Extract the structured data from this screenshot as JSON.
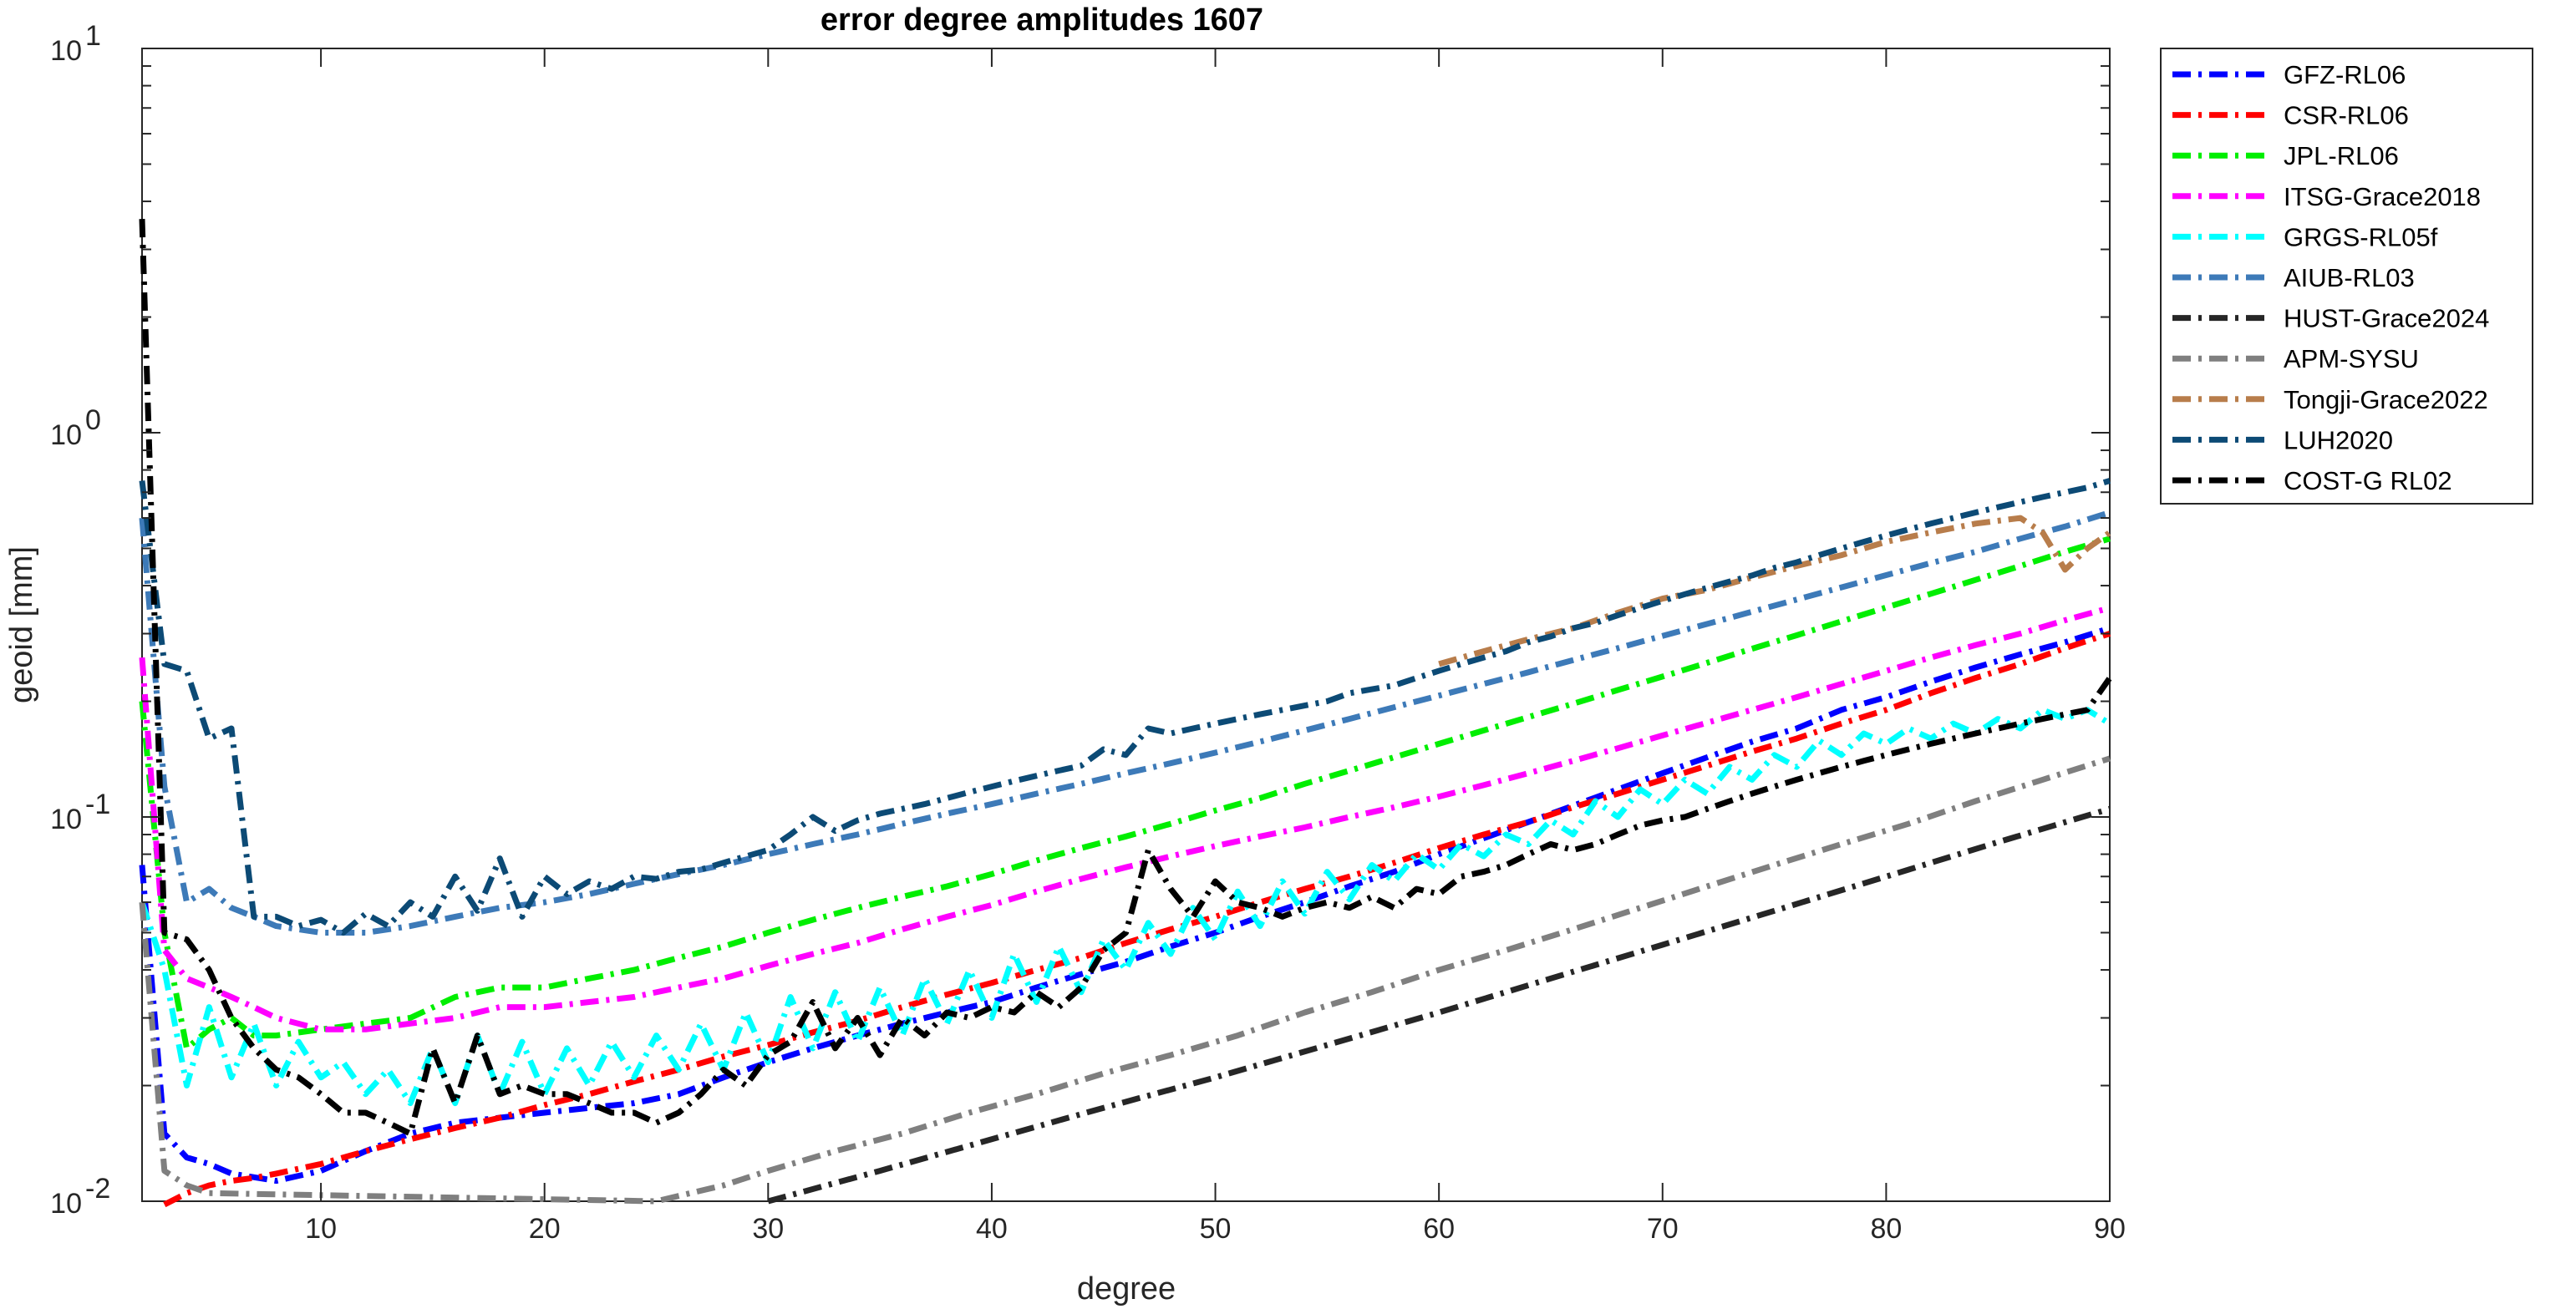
{
  "chart_data": {
    "type": "line",
    "title": "error degree amplitudes 1607",
    "xlabel": "degree",
    "ylabel": "geoid [mm]",
    "yscale": "log",
    "xlim": [
      2,
      90
    ],
    "ylim": [
      0.01,
      10
    ],
    "x_ticks": [
      10,
      20,
      30,
      40,
      50,
      60,
      70,
      80,
      90
    ],
    "y_ticks": [
      {
        "value": 0.01,
        "base": "10",
        "exp": "-2"
      },
      {
        "value": 0.1,
        "base": "10",
        "exp": "-1"
      },
      {
        "value": 1,
        "base": "10",
        "exp": "0"
      },
      {
        "value": 10,
        "base": "10",
        "exp": "1"
      }
    ],
    "grid": false,
    "legend_position": "outside-top-right",
    "series": [
      {
        "name": "GFZ-RL06",
        "color": "#0000ff",
        "x": [
          2,
          3,
          4,
          5,
          6,
          8,
          10,
          12,
          14,
          16,
          18,
          20,
          22,
          24,
          26,
          28,
          30,
          32,
          34,
          36,
          38,
          40,
          42,
          44,
          46,
          48,
          50,
          52,
          54,
          56,
          58,
          60,
          62,
          64,
          66,
          68,
          70,
          72,
          74,
          76,
          78,
          80,
          82,
          84,
          86,
          88,
          90
        ],
        "values": [
          0.075,
          0.015,
          0.013,
          0.0125,
          0.0118,
          0.0113,
          0.012,
          0.0135,
          0.015,
          0.016,
          0.0165,
          0.017,
          0.0175,
          0.018,
          0.019,
          0.021,
          0.023,
          0.025,
          0.027,
          0.029,
          0.031,
          0.033,
          0.036,
          0.039,
          0.042,
          0.046,
          0.05,
          0.055,
          0.06,
          0.066,
          0.072,
          0.08,
          0.088,
          0.097,
          0.107,
          0.118,
          0.13,
          0.143,
          0.157,
          0.17,
          0.19,
          0.205,
          0.225,
          0.245,
          0.265,
          0.285,
          0.31
        ]
      },
      {
        "name": "CSR-RL06",
        "color": "#ff0000",
        "x": [
          3,
          4,
          5,
          6,
          7,
          8,
          10,
          12,
          14,
          16,
          18,
          20,
          22,
          24,
          26,
          28,
          30,
          32,
          34,
          36,
          38,
          40,
          42,
          44,
          46,
          48,
          50,
          52,
          54,
          56,
          58,
          60,
          62,
          64,
          66,
          68,
          70,
          72,
          74,
          76,
          78,
          80,
          82,
          84,
          86,
          88,
          90
        ],
        "values": [
          0.0095,
          0.0105,
          0.011,
          0.0113,
          0.0115,
          0.0118,
          0.0125,
          0.0135,
          0.0145,
          0.0155,
          0.0165,
          0.0178,
          0.019,
          0.0205,
          0.022,
          0.0238,
          0.0255,
          0.0275,
          0.0295,
          0.032,
          0.0345,
          0.037,
          0.04,
          0.043,
          0.047,
          0.051,
          0.055,
          0.06,
          0.065,
          0.07,
          0.076,
          0.083,
          0.09,
          0.097,
          0.106,
          0.115,
          0.125,
          0.136,
          0.148,
          0.16,
          0.175,
          0.19,
          0.21,
          0.23,
          0.25,
          0.275,
          0.3
        ]
      },
      {
        "name": "JPL-RL06",
        "color": "#00ee00",
        "x": [
          2,
          3,
          4,
          5,
          6,
          7,
          8,
          10,
          12,
          14,
          16,
          18,
          20,
          22,
          24,
          26,
          28,
          30,
          32,
          34,
          36,
          38,
          40,
          42,
          44,
          46,
          48,
          50,
          52,
          54,
          56,
          58,
          60,
          62,
          64,
          66,
          68,
          70,
          72,
          74,
          76,
          78,
          80,
          82,
          84,
          86,
          88,
          90
        ],
        "values": [
          0.2,
          0.05,
          0.025,
          0.028,
          0.03,
          0.027,
          0.027,
          0.028,
          0.029,
          0.03,
          0.034,
          0.036,
          0.036,
          0.038,
          0.04,
          0.043,
          0.046,
          0.05,
          0.054,
          0.058,
          0.062,
          0.066,
          0.071,
          0.077,
          0.083,
          0.089,
          0.096,
          0.104,
          0.112,
          0.122,
          0.132,
          0.143,
          0.155,
          0.168,
          0.182,
          0.197,
          0.214,
          0.232,
          0.252,
          0.274,
          0.297,
          0.323,
          0.351,
          0.381,
          0.414,
          0.45,
          0.49,
          0.53
        ]
      },
      {
        "name": "ITSG-Grace2018",
        "color": "#ff00ff",
        "x": [
          2,
          3,
          4,
          5,
          6,
          7,
          8,
          10,
          12,
          14,
          16,
          18,
          20,
          22,
          24,
          26,
          28,
          30,
          32,
          34,
          36,
          38,
          40,
          42,
          44,
          46,
          48,
          50,
          52,
          54,
          56,
          58,
          60,
          62,
          64,
          66,
          68,
          70,
          72,
          74,
          76,
          78,
          80,
          82,
          84,
          86,
          88,
          90
        ],
        "values": [
          0.26,
          0.045,
          0.038,
          0.036,
          0.034,
          0.032,
          0.03,
          0.028,
          0.028,
          0.029,
          0.03,
          0.032,
          0.032,
          0.033,
          0.034,
          0.036,
          0.038,
          0.041,
          0.044,
          0.047,
          0.051,
          0.055,
          0.059,
          0.064,
          0.069,
          0.074,
          0.079,
          0.084,
          0.089,
          0.094,
          0.1,
          0.106,
          0.113,
          0.121,
          0.13,
          0.14,
          0.151,
          0.163,
          0.176,
          0.19,
          0.205,
          0.222,
          0.24,
          0.26,
          0.28,
          0.3,
          0.325,
          0.35
        ]
      },
      {
        "name": "GRGS-RL05f",
        "color": "#00ffff",
        "x": [
          2,
          3,
          4,
          5,
          6,
          7,
          8,
          9,
          10,
          11,
          12,
          13,
          14,
          15,
          16,
          17,
          18,
          19,
          20,
          21,
          22,
          23,
          24,
          25,
          26,
          27,
          28,
          29,
          30,
          31,
          32,
          33,
          34,
          35,
          36,
          37,
          38,
          39,
          40,
          41,
          42,
          43,
          44,
          45,
          46,
          47,
          48,
          49,
          50,
          51,
          52,
          53,
          54,
          55,
          56,
          57,
          58,
          59,
          60,
          61,
          62,
          63,
          64,
          65,
          66,
          67,
          68,
          69,
          70,
          71,
          72,
          73,
          74,
          75,
          76,
          77,
          78,
          79,
          80,
          81,
          82,
          83,
          84,
          85,
          86,
          87,
          88,
          89,
          90
        ],
        "values": [
          0.06,
          0.04,
          0.02,
          0.032,
          0.021,
          0.029,
          0.02,
          0.026,
          0.021,
          0.023,
          0.019,
          0.022,
          0.018,
          0.025,
          0.018,
          0.027,
          0.019,
          0.026,
          0.019,
          0.025,
          0.02,
          0.026,
          0.021,
          0.027,
          0.022,
          0.029,
          0.022,
          0.031,
          0.023,
          0.034,
          0.025,
          0.035,
          0.026,
          0.036,
          0.027,
          0.038,
          0.029,
          0.04,
          0.03,
          0.044,
          0.033,
          0.046,
          0.035,
          0.048,
          0.04,
          0.053,
          0.044,
          0.058,
          0.048,
          0.064,
          0.052,
          0.068,
          0.056,
          0.072,
          0.061,
          0.075,
          0.068,
          0.08,
          0.073,
          0.085,
          0.079,
          0.09,
          0.085,
          0.098,
          0.09,
          0.11,
          0.1,
          0.118,
          0.108,
          0.125,
          0.115,
          0.135,
          0.125,
          0.145,
          0.135,
          0.158,
          0.145,
          0.165,
          0.155,
          0.17,
          0.16,
          0.175,
          0.165,
          0.18,
          0.17,
          0.19,
          0.18,
          0.19,
          0.175
        ]
      },
      {
        "name": "AIUB-RL03",
        "color": "#3d7ab8",
        "x": [
          2,
          3,
          4,
          5,
          6,
          7,
          8,
          10,
          12,
          14,
          16,
          18,
          20,
          22,
          24,
          26,
          28,
          30,
          32,
          34,
          36,
          38,
          40,
          42,
          44,
          46,
          48,
          50,
          52,
          54,
          56,
          58,
          60,
          62,
          64,
          66,
          68,
          70,
          72,
          74,
          76,
          78,
          80,
          82,
          84,
          86,
          88,
          90
        ],
        "values": [
          0.6,
          0.12,
          0.06,
          0.065,
          0.058,
          0.055,
          0.052,
          0.05,
          0.05,
          0.052,
          0.055,
          0.058,
          0.06,
          0.063,
          0.067,
          0.071,
          0.075,
          0.08,
          0.085,
          0.09,
          0.096,
          0.102,
          0.108,
          0.115,
          0.122,
          0.13,
          0.138,
          0.147,
          0.157,
          0.168,
          0.18,
          0.193,
          0.207,
          0.222,
          0.238,
          0.256,
          0.275,
          0.296,
          0.318,
          0.342,
          0.368,
          0.396,
          0.426,
          0.458,
          0.49,
          0.53,
          0.57,
          0.62
        ]
      },
      {
        "name": "HUST-Grace2024",
        "color": "#262626",
        "x": [
          30,
          35,
          40,
          45,
          50,
          55,
          60,
          65,
          70,
          75,
          80,
          85,
          90
        ],
        "values": [
          0.01,
          0.012,
          0.0145,
          0.0175,
          0.021,
          0.0255,
          0.031,
          0.038,
          0.0465,
          0.057,
          0.07,
          0.086,
          0.105
        ]
      },
      {
        "name": "APM-SYSU",
        "color": "#7f7f7f",
        "x": [
          2,
          3,
          4,
          5,
          25,
          28,
          30,
          33,
          36,
          39,
          42,
          45,
          48,
          51,
          54,
          57,
          60,
          63,
          66,
          69,
          72,
          75,
          78,
          81,
          84,
          87,
          90
        ],
        "values": [
          0.06,
          0.012,
          0.011,
          0.0105,
          0.01,
          0.011,
          0.012,
          0.0135,
          0.015,
          0.017,
          0.019,
          0.0215,
          0.024,
          0.027,
          0.031,
          0.035,
          0.04,
          0.045,
          0.051,
          0.058,
          0.066,
          0.075,
          0.085,
          0.096,
          0.11,
          0.125,
          0.142
        ]
      },
      {
        "name": "Tongji-Grace2022",
        "color": "#b87d4b",
        "x": [
          60,
          62,
          64,
          66,
          68,
          70,
          72,
          74,
          76,
          78,
          80,
          82,
          84,
          86,
          87,
          88,
          89,
          90
        ],
        "values": [
          0.25,
          0.27,
          0.29,
          0.31,
          0.34,
          0.37,
          0.39,
          0.42,
          0.45,
          0.48,
          0.52,
          0.55,
          0.58,
          0.6,
          0.55,
          0.44,
          0.5,
          0.55
        ]
      },
      {
        "name": "LUH2020",
        "color": "#0c4a75",
        "x": [
          2,
          3,
          4,
          5,
          6,
          7,
          8,
          9,
          10,
          11,
          12,
          13,
          14,
          15,
          16,
          17,
          18,
          19,
          20,
          21,
          22,
          23,
          24,
          25,
          26,
          27,
          28,
          29,
          30,
          31,
          32,
          33,
          34,
          35,
          36,
          37,
          38,
          39,
          40,
          41,
          42,
          43,
          44,
          45,
          46,
          47,
          48,
          49,
          50,
          51,
          52,
          53,
          54,
          55,
          56,
          57,
          58,
          59,
          60,
          61,
          62,
          63,
          64,
          65,
          66,
          67,
          68,
          69,
          70,
          71,
          72,
          73,
          74,
          75,
          76,
          77,
          78,
          79,
          80,
          81,
          82,
          83,
          84,
          85,
          86,
          87,
          88,
          89,
          90
        ],
        "values": [
          0.75,
          0.25,
          0.24,
          0.16,
          0.17,
          0.055,
          0.055,
          0.052,
          0.054,
          0.05,
          0.056,
          0.052,
          0.06,
          0.055,
          0.07,
          0.057,
          0.078,
          0.055,
          0.07,
          0.063,
          0.068,
          0.065,
          0.07,
          0.069,
          0.072,
          0.073,
          0.076,
          0.079,
          0.082,
          0.09,
          0.1,
          0.092,
          0.098,
          0.102,
          0.105,
          0.108,
          0.112,
          0.116,
          0.12,
          0.124,
          0.128,
          0.132,
          0.136,
          0.15,
          0.145,
          0.17,
          0.165,
          0.17,
          0.175,
          0.18,
          0.185,
          0.19,
          0.195,
          0.2,
          0.21,
          0.215,
          0.22,
          0.23,
          0.24,
          0.25,
          0.26,
          0.27,
          0.285,
          0.295,
          0.31,
          0.32,
          0.335,
          0.35,
          0.365,
          0.38,
          0.395,
          0.41,
          0.425,
          0.445,
          0.46,
          0.48,
          0.5,
          0.52,
          0.54,
          0.56,
          0.58,
          0.6,
          0.62,
          0.64,
          0.66,
          0.68,
          0.7,
          0.72,
          0.75
        ]
      },
      {
        "name": "COST-G RL02",
        "color": "#000000",
        "x": [
          2,
          3,
          4,
          5,
          6,
          7,
          8,
          9,
          10,
          11,
          12,
          13,
          14,
          15,
          16,
          17,
          18,
          19,
          20,
          21,
          22,
          23,
          24,
          25,
          26,
          27,
          28,
          29,
          30,
          31,
          32,
          33,
          34,
          35,
          36,
          37,
          38,
          39,
          40,
          41,
          42,
          43,
          44,
          45,
          46,
          47,
          48,
          49,
          50,
          51,
          52,
          53,
          54,
          55,
          56,
          57,
          58,
          59,
          60,
          61,
          62,
          63,
          64,
          65,
          66,
          67,
          68,
          69,
          70,
          71,
          72,
          73,
          74,
          75,
          76,
          77,
          78,
          79,
          80,
          81,
          82,
          83,
          84,
          85,
          86,
          87,
          88,
          89,
          90
        ],
        "values": [
          3.6,
          0.05,
          0.048,
          0.04,
          0.03,
          0.025,
          0.022,
          0.021,
          0.019,
          0.017,
          0.017,
          0.016,
          0.015,
          0.025,
          0.018,
          0.027,
          0.019,
          0.02,
          0.019,
          0.019,
          0.018,
          0.017,
          0.017,
          0.016,
          0.017,
          0.019,
          0.022,
          0.02,
          0.024,
          0.026,
          0.033,
          0.025,
          0.03,
          0.024,
          0.03,
          0.027,
          0.031,
          0.03,
          0.032,
          0.031,
          0.035,
          0.032,
          0.036,
          0.045,
          0.05,
          0.082,
          0.065,
          0.055,
          0.068,
          0.06,
          0.058,
          0.055,
          0.058,
          0.06,
          0.058,
          0.062,
          0.058,
          0.065,
          0.063,
          0.07,
          0.072,
          0.075,
          0.08,
          0.085,
          0.082,
          0.085,
          0.09,
          0.095,
          0.098,
          0.1,
          0.105,
          0.11,
          0.115,
          0.12,
          0.125,
          0.13,
          0.135,
          0.14,
          0.145,
          0.15,
          0.155,
          0.16,
          0.165,
          0.17,
          0.175,
          0.18,
          0.185,
          0.19,
          0.23
        ]
      }
    ]
  }
}
